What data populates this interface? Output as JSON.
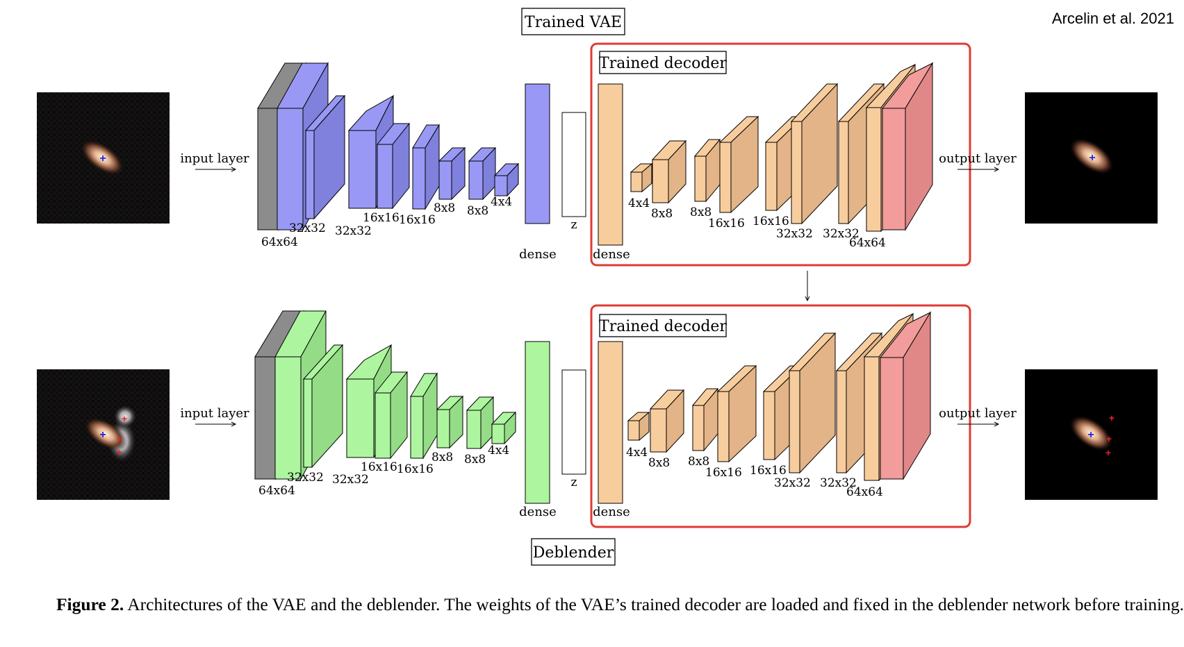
{
  "attribution": "Arcelin et al. 2021",
  "top": {
    "title": "Trained VAE",
    "input_label": "input layer",
    "output_label": "output layer",
    "encoder_sizes": [
      "64x64",
      "32x32",
      "32x32",
      "16x16",
      "16x16",
      "8x8",
      "8x8",
      "4x4"
    ],
    "dense_label": "dense",
    "z_label": "z",
    "decoder_box_title": "Trained decoder",
    "decoder_dense_label": "dense",
    "decoder_sizes": [
      "4x4",
      "8x8",
      "8x8",
      "16x16",
      "16x16",
      "32x32",
      "32x32",
      "64x64"
    ]
  },
  "bottom": {
    "title": "Deblender",
    "input_label": "input layer",
    "output_label": "output layer",
    "encoder_sizes": [
      "64x64",
      "32x32",
      "32x32",
      "16x16",
      "16x16",
      "8x8",
      "8x8",
      "4x4"
    ],
    "dense_label": "dense",
    "z_label": "z",
    "decoder_box_title": "Trained decoder",
    "decoder_dense_label": "dense",
    "decoder_sizes": [
      "4x4",
      "8x8",
      "8x8",
      "16x16",
      "16x16",
      "32x32",
      "32x32",
      "64x64"
    ]
  },
  "colors": {
    "vae_encoder": "#9999f5",
    "deblender_encoder": "#aef5a0",
    "decoder": "#f8cd9e",
    "output_layer": "#f29c9c",
    "input_conv": "#8c8c8c",
    "highlight_box": "#e03a33"
  },
  "caption": {
    "label": "Figure 2.",
    "text": " Architectures of the VAE and the deblender. The weights of the VAE’s trained decoder are loaded and fixed in the deblender network before training."
  }
}
